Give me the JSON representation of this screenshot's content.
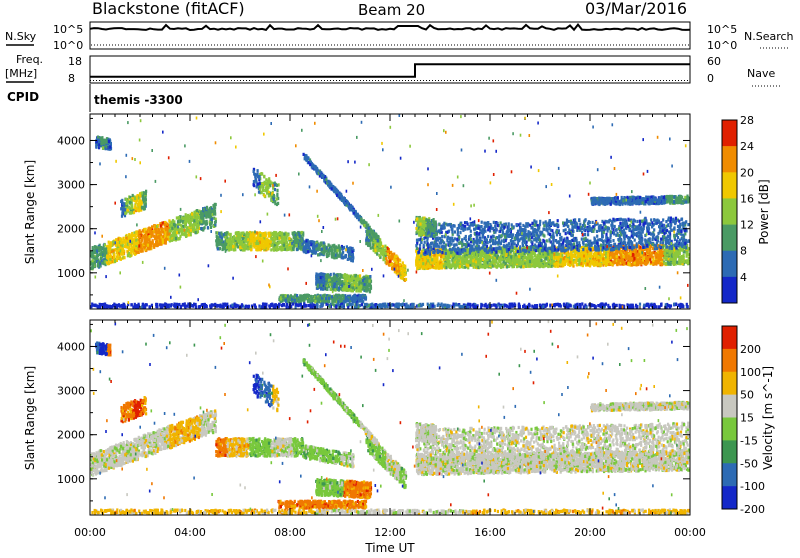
{
  "header": {
    "radar": "Blackstone (fitACF)",
    "beam": "Beam 20",
    "date": "03/Mar/2016"
  },
  "noise_panel": {
    "left_label": "N.Sky",
    "left_ticks": [
      "10^5",
      "10^0"
    ],
    "right_ticks": [
      "10^5",
      "10^0"
    ],
    "right_label": "N.Search"
  },
  "freq_panel": {
    "left_label_1": "Freq.",
    "left_label_2": "[MHz]",
    "left_ticks": [
      "18",
      "8"
    ],
    "right_ticks": [
      "60",
      "0"
    ],
    "right_label": "Nave",
    "step_at_hour": 13.0,
    "freq_before": 10.5,
    "freq_after": 15.5,
    "nave_level": 6
  },
  "cpid": {
    "label": "CPID",
    "value": "themis -3300"
  },
  "chart_data": [
    {
      "type": "heatmap",
      "name": "power",
      "ylabel": "Slant Range [km]",
      "ylim": [
        180,
        4600
      ],
      "yticks": [
        "1000",
        "2000",
        "3000",
        "4000"
      ],
      "colorbar_label": "Power [dB]",
      "colorbar_ticks": [
        "4",
        "8",
        "12",
        "16",
        "20",
        "24",
        "28"
      ],
      "colors": [
        "#1428c8",
        "#2d6bb4",
        "#4a9a64",
        "#8cc83c",
        "#f0c800",
        "#f08c00",
        "#e02000"
      ]
    },
    {
      "type": "heatmap",
      "name": "velocity",
      "ylabel": "Slant Range [km]",
      "ylim": [
        180,
        4600
      ],
      "yticks": [
        "1000",
        "2000",
        "3000",
        "4000"
      ],
      "colorbar_label": "Velocity [m s^-1]",
      "colorbar_ticks": [
        "200",
        "100",
        "50",
        "15",
        "-15",
        "-50",
        "-100",
        "-200"
      ],
      "colors": [
        "#1428c8",
        "#2d6bb4",
        "#3c9650",
        "#78c83c",
        "#c8c8c0",
        "#f0b400",
        "#f07800",
        "#e02000"
      ]
    }
  ],
  "x_axis": {
    "label": "Time UT",
    "xlim": [
      0,
      24
    ],
    "ticks": [
      "00:00",
      "04:00",
      "08:00",
      "12:00",
      "16:00",
      "20:00",
      "00:00"
    ]
  }
}
